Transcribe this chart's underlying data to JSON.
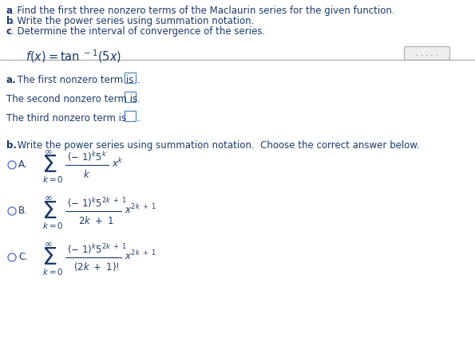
{
  "background_color": "#ffffff",
  "title_lines": [
    "a. Find the first three nonzero terms of the Maclaurin series for the given function.",
    "b. Write the power series using summation notation.",
    "c. Determine the interval of convergence of the series."
  ],
  "section_a_lines": [
    "a. The first nonzero term is",
    "The second nonzero term is",
    "The third nonzero term is"
  ],
  "section_b_label": "b. Write the power series using summation notation.  Choose the correct answer below.",
  "text_color": "#1b3a6b",
  "bold_color": "#1b3a6b",
  "figsize": [
    5.95,
    4.39
  ],
  "dpi": 100
}
